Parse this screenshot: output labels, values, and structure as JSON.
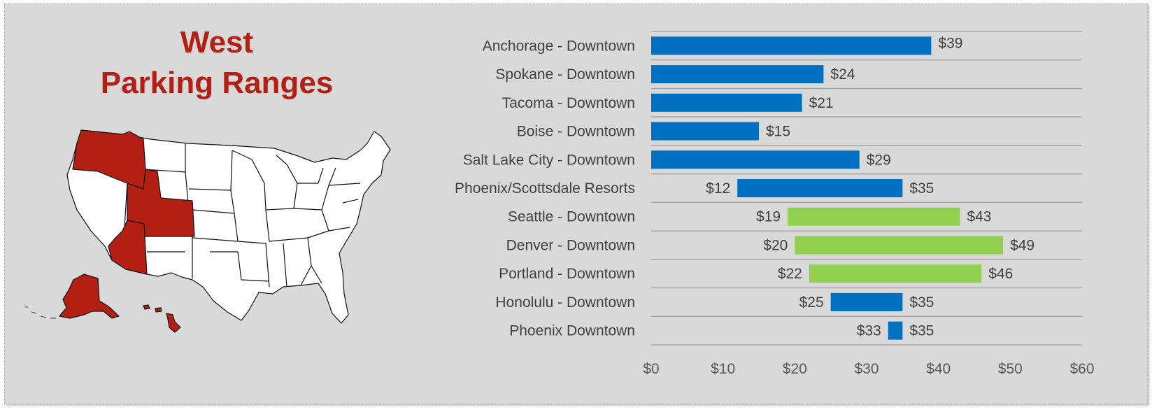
{
  "title": {
    "line1": "West",
    "line2": "Parking Ranges"
  },
  "colors": {
    "title": "#b41f14",
    "highlight_states": "#b41f14",
    "other_states": "#ffffff",
    "blue_bar": "#0070c0",
    "green_bar": "#92d050"
  },
  "chart_data": {
    "type": "bar",
    "orientation": "horizontal",
    "stacked_range": true,
    "categories": [
      "Anchorage - Downtown",
      "Spokane - Downtown",
      "Tacoma - Downtown",
      "Boise - Downtown",
      "Salt Lake City - Downtown",
      "Phoenix/Scottsdale Resorts",
      "Seattle - Downtown",
      "Denver - Downtown",
      "Portland - Downtown",
      "Honolulu - Downtown",
      "Phoenix Downtown"
    ],
    "series": [
      {
        "low": [
          0,
          0,
          0,
          0,
          0,
          12,
          19,
          20,
          22,
          25,
          33
        ],
        "high": [
          39,
          24,
          21,
          15,
          29,
          35,
          43,
          49,
          46,
          35,
          35
        ],
        "low_labels": [
          "",
          "",
          "",
          "",
          "",
          "$12",
          "$19",
          "$20",
          "$22",
          "$25",
          "$33"
        ],
        "high_labels": [
          "$39",
          "$24",
          "$21",
          "$15",
          "$29",
          "$35",
          "$43",
          "$49",
          "$46",
          "$35",
          "$35"
        ],
        "color_group": [
          "blue",
          "blue",
          "blue",
          "blue",
          "blue",
          "blue",
          "green",
          "green",
          "green",
          "blue",
          "blue"
        ]
      }
    ],
    "x_ticks": [
      "$0",
      "$10",
      "$20",
      "$30",
      "$40",
      "$50",
      "$60"
    ],
    "xlim": [
      0,
      60
    ],
    "grid": true
  }
}
